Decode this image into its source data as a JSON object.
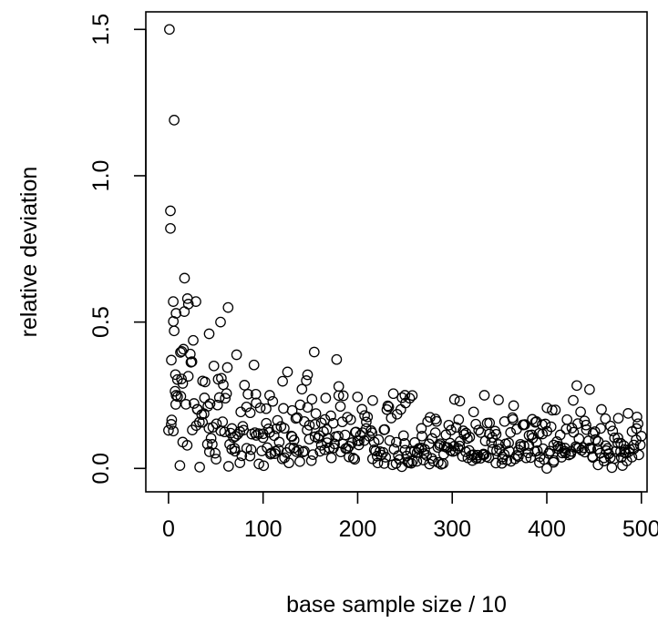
{
  "chart_data": {
    "type": "scatter",
    "title": "",
    "xlabel": "base sample size / 10",
    "ylabel": "relative deviation",
    "xlim": [
      -24,
      506
    ],
    "ylim": [
      -0.08,
      1.56
    ],
    "x_ticks": [
      0,
      100,
      200,
      300,
      400,
      500
    ],
    "x_tick_labels": [
      "0",
      "100",
      "200",
      "300",
      "400",
      "500"
    ],
    "y_ticks": [
      0.0,
      0.5,
      1.0,
      1.5
    ],
    "y_tick_labels": [
      "0.0",
      "0.5",
      "1.0",
      "1.5"
    ],
    "grid": false,
    "marker": "open-circle",
    "n_points": 500,
    "points_highlighted": [
      {
        "x": 1,
        "y": 1.5
      },
      {
        "x": 6,
        "y": 1.19
      },
      {
        "x": 2,
        "y": 0.88
      },
      {
        "x": 2,
        "y": 0.82
      },
      {
        "x": 17,
        "y": 0.65
      },
      {
        "x": 5,
        "y": 0.57
      },
      {
        "x": 20,
        "y": 0.58
      },
      {
        "x": 29,
        "y": 0.57
      },
      {
        "x": 63,
        "y": 0.55
      },
      {
        "x": 8,
        "y": 0.53
      },
      {
        "x": 55,
        "y": 0.5
      },
      {
        "x": 6,
        "y": 0.47
      },
      {
        "x": 43,
        "y": 0.46
      },
      {
        "x": 3,
        "y": 0.37
      },
      {
        "x": 14,
        "y": 0.4
      },
      {
        "x": 8,
        "y": 0.25
      },
      {
        "x": 12,
        "y": 0.01
      },
      {
        "x": 15,
        "y": 0.09
      },
      {
        "x": 48,
        "y": 0.35
      },
      {
        "x": 60,
        "y": 0.24
      },
      {
        "x": 107,
        "y": 0.25
      },
      {
        "x": 147,
        "y": 0.32
      },
      {
        "x": 180,
        "y": 0.28
      },
      {
        "x": 250,
        "y": 0.25
      },
      {
        "x": 255,
        "y": 0.24
      },
      {
        "x": 308,
        "y": 0.23
      },
      {
        "x": 334,
        "y": 0.25
      },
      {
        "x": 389,
        "y": 0.16
      },
      {
        "x": 462,
        "y": 0.17
      },
      {
        "x": 500,
        "y": 0.11
      },
      {
        "x": 480,
        "y": 0.01
      },
      {
        "x": 400,
        "y": 0.0
      }
    ],
    "trend_description_values": {
      "early_range": [
        0.0,
        1.5
      ],
      "late_range": [
        0.0,
        0.25
      ]
    }
  }
}
